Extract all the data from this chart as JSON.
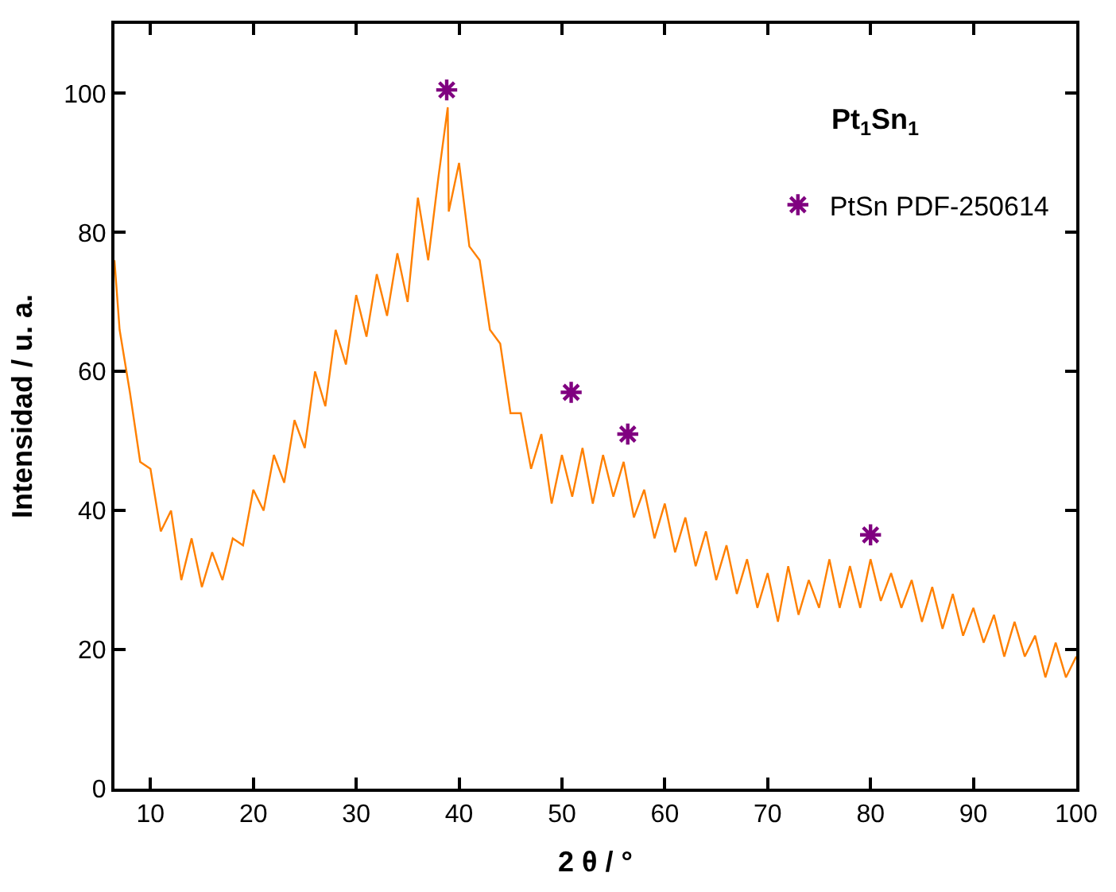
{
  "chart_data": {
    "type": "line",
    "xlabel": "2 θ / °",
    "ylabel": "Intensidad / u. a.",
    "xlim": [
      6.5,
      100
    ],
    "xticks": [
      10,
      20,
      30,
      40,
      50,
      60,
      70,
      80,
      90,
      100
    ],
    "ylim": [
      0,
      110
    ],
    "yticks": [
      0,
      20,
      40,
      60,
      80,
      100
    ],
    "legend": "top right",
    "annotations": [
      "Pt$_{1}$Sn$_{1}$"
    ],
    "series": [
      {
        "color": "#ff8000",
        "marker": "none",
        "line_style": "solid",
        "x": [
          6.5,
          7,
          8,
          9,
          10,
          11,
          12,
          13,
          14,
          15,
          16,
          17,
          18,
          19,
          20,
          21,
          22,
          23,
          24,
          25,
          26,
          27,
          28,
          29,
          30,
          31,
          32,
          33,
          34,
          35,
          36,
          37,
          38,
          38.9,
          39,
          40,
          41,
          42,
          43,
          44,
          45,
          46,
          47,
          48,
          49,
          50,
          51,
          52,
          53,
          54,
          55,
          56,
          57,
          58,
          59,
          60,
          61,
          62,
          63,
          64,
          65,
          66,
          67,
          68,
          69,
          70,
          71,
          72,
          73,
          74,
          75,
          76,
          77,
          78,
          79,
          80,
          81,
          82,
          83,
          84,
          85,
          86,
          87,
          88,
          89,
          90,
          91,
          92,
          93,
          94,
          95,
          96,
          97,
          98,
          99,
          100
        ],
        "values": [
          76,
          66,
          57,
          47,
          46,
          37,
          40,
          30,
          36,
          29,
          34,
          30,
          36,
          35,
          43,
          40,
          48,
          44,
          53,
          49,
          60,
          55,
          66,
          61,
          71,
          65,
          74,
          68,
          77,
          70,
          85,
          76,
          88,
          98,
          83,
          90,
          78,
          76,
          66,
          64,
          54,
          54,
          46,
          51,
          41,
          48,
          42,
          49,
          41,
          48,
          42,
          47,
          39,
          43,
          36,
          41,
          34,
          39,
          32,
          37,
          30,
          35,
          28,
          33,
          26,
          31,
          24,
          32,
          25,
          30,
          26,
          33,
          26,
          32,
          26,
          33,
          27,
          31,
          26,
          30,
          24,
          29,
          23,
          28,
          22,
          26,
          21,
          25,
          19,
          24,
          19,
          22,
          16,
          21,
          16,
          19
        ]
      },
      {
        "type": "scatter",
        "name": "PtSn PDF-250614",
        "color": "#800080",
        "marker": "cross",
        "x": [
          38.8,
          50.9,
          56.4,
          80
        ],
        "values": [
          100.5,
          57,
          51,
          36.5
        ]
      }
    ]
  }
}
